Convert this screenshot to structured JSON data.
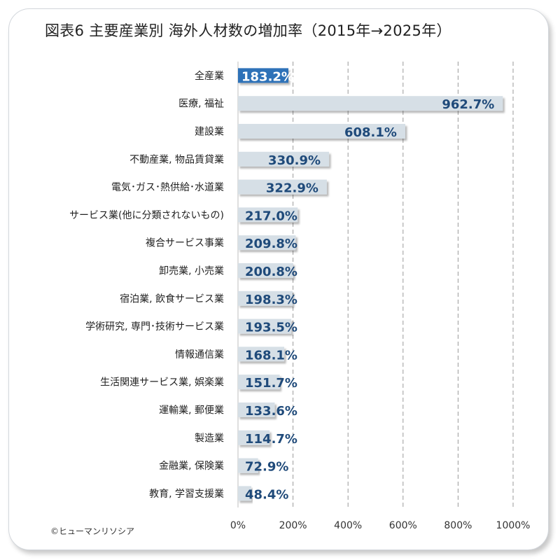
{
  "title": "図表6  主要産業別  海外人材数の増加率（2015年→2025年）",
  "credit": "©ヒューマンリソシア",
  "colors": {
    "bar": "#d6dfe6",
    "bar_highlight": "#2e72b8",
    "label": "#1f4a7a",
    "label_highlight": "#ffffff"
  },
  "chart_data": {
    "type": "bar",
    "orientation": "horizontal",
    "categories": [
      "全産業",
      "医療, 福祉",
      "建設業",
      "不動産業, 物品賃貸業",
      "電気･ガス･熱供給･水道業",
      "サービス業(他に分類されないもの)",
      "複合サービス事業",
      "卸売業, 小売業",
      "宿泊業, 飲食サービス業",
      "学術研究, 専門･技術サービス業",
      "情報通信業",
      "生活関連サービス業, 娯楽業",
      "運輸業, 郵便業",
      "製造業",
      "金融業, 保険業",
      "教育, 学習支援業"
    ],
    "values": [
      183.2,
      962.7,
      608.1,
      330.9,
      322.9,
      217.0,
      209.8,
      200.8,
      198.3,
      193.5,
      168.1,
      151.7,
      133.6,
      114.7,
      72.9,
      48.4
    ],
    "data_labels": [
      "183.2%",
      "962.7%",
      "608.1%",
      "330.9%",
      "322.9%",
      "217.0%",
      "209.8%",
      "200.8%",
      "198.3%",
      "193.5%",
      "168.1%",
      "151.7%",
      "133.6%",
      "114.7%",
      "72.9%",
      "48.4%"
    ],
    "highlight_index": 0,
    "xlim": [
      0,
      1000
    ],
    "x_ticks": [
      0,
      200,
      400,
      600,
      800,
      1000
    ],
    "x_tick_labels": [
      "0%",
      "200%",
      "400%",
      "600%",
      "800%",
      "1000%"
    ],
    "grid": "vertical dashed",
    "legend": "none"
  }
}
